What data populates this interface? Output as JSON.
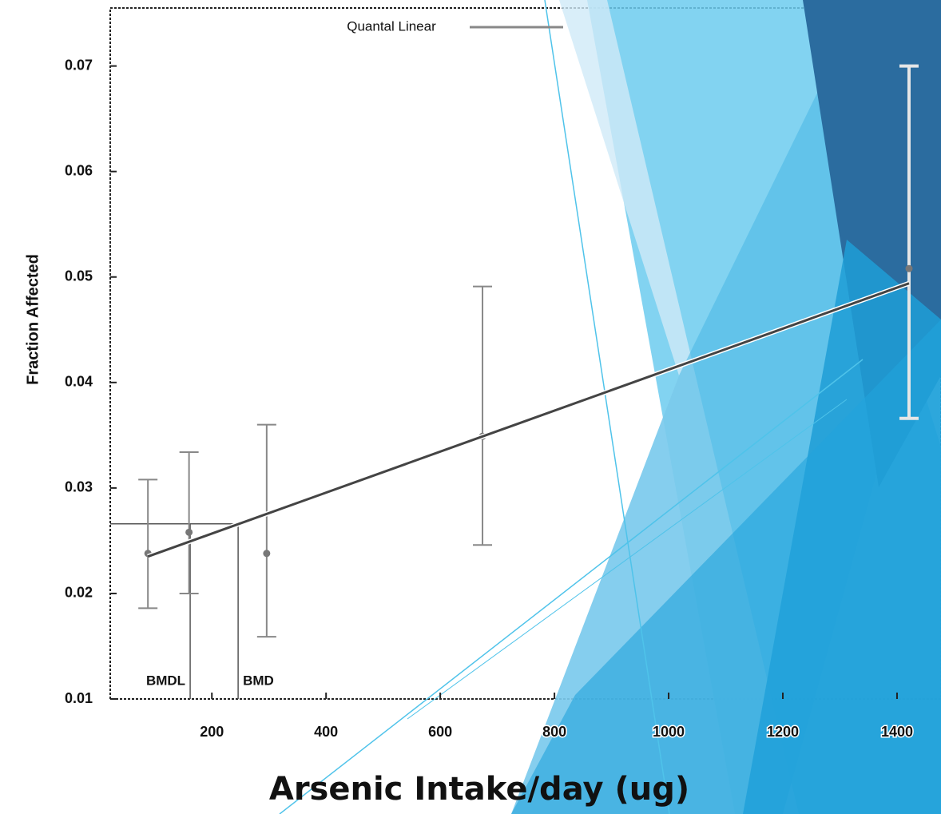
{
  "chart_data": {
    "type": "scatter",
    "title": "Arsenic Intake/day (ug)",
    "y_label": "Fraction Affected",
    "x": [
      88,
      160,
      296,
      674,
      1421
    ],
    "values": [
      0.0238,
      0.0258,
      0.0238,
      0.0349,
      0.0508
    ],
    "lower": [
      0.0186,
      0.02,
      0.0159,
      0.0246,
      0.0366
    ],
    "upper": [
      0.0308,
      0.0334,
      0.036,
      0.0491,
      0.07
    ],
    "color": "#777777",
    "fit": {
      "name": "Quantal Linear",
      "color": "#444444",
      "x": [
        88,
        1421
      ],
      "values": [
        0.0235,
        0.0494
      ]
    },
    "bmr_level": 0.0266,
    "annotations": [
      {
        "label": "BMDL",
        "x": 162
      },
      {
        "label": "BMD",
        "x": 246
      }
    ],
    "xlim": [
      22,
      1477
    ],
    "ylim": [
      0.01,
      0.0755
    ],
    "xticks": [
      200,
      400,
      600,
      800,
      1000,
      1200,
      1400
    ],
    "yticks": [
      0.01,
      0.02,
      0.03,
      0.04,
      0.05,
      0.06,
      0.07
    ]
  }
}
